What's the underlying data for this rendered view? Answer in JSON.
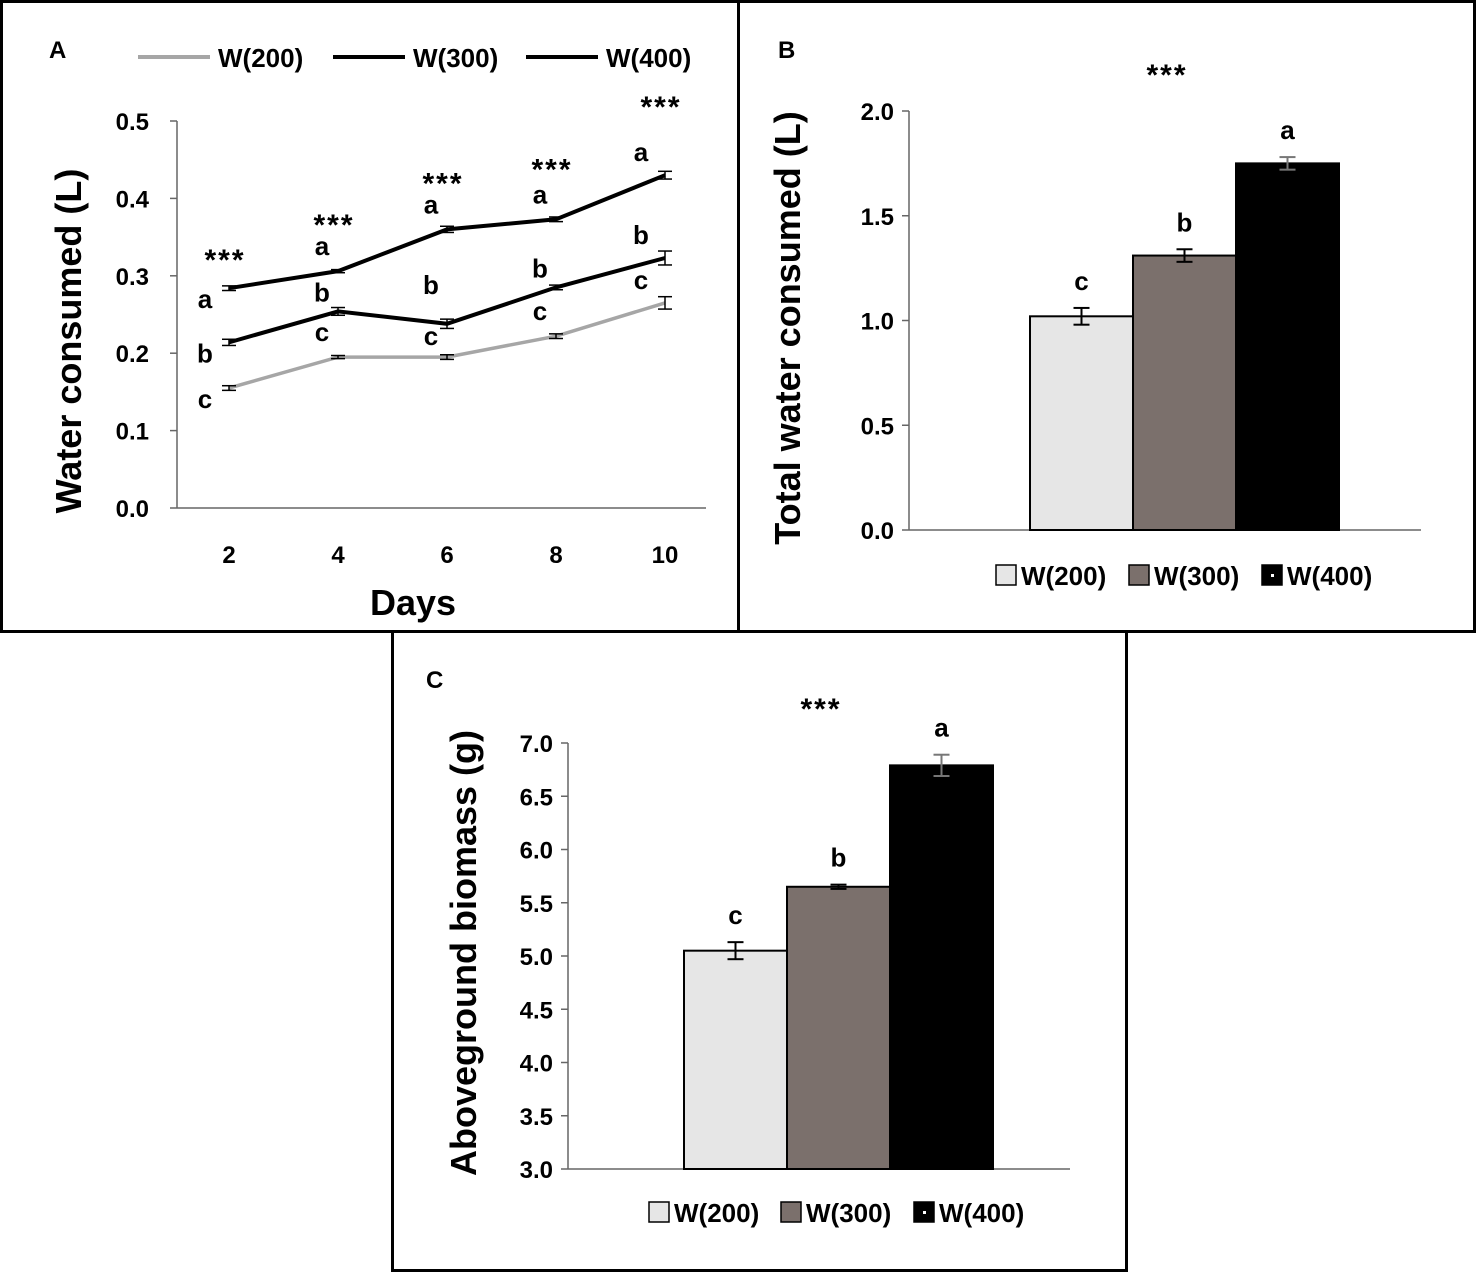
{
  "chart_data": [
    {
      "id": "A",
      "type": "line",
      "panel_label": "A",
      "xlabel": "Days",
      "ylabel": "Water consumed (L)",
      "ylim": [
        0,
        0.5
      ],
      "yticks": [
        "0.0",
        "0.1",
        "0.2",
        "0.3",
        "0.4",
        "0.5"
      ],
      "categories": [
        "2",
        "4",
        "6",
        "8",
        "10"
      ],
      "significance": [
        "***",
        "***",
        "***",
        "***",
        "***"
      ],
      "series": [
        {
          "name": "W(200)",
          "color": "#a6a6a6",
          "values": [
            0.155,
            0.195,
            0.195,
            0.222,
            0.265
          ],
          "errors": [
            0.003,
            0.002,
            0.003,
            0.003,
            0.008
          ],
          "letters": [
            "c",
            "c",
            "c",
            "c",
            "c"
          ]
        },
        {
          "name": "W(300)",
          "color": "#000000",
          "values": [
            0.214,
            0.254,
            0.238,
            0.285,
            0.323
          ],
          "errors": [
            0.004,
            0.005,
            0.006,
            0.003,
            0.009
          ],
          "letters": [
            "b",
            "b",
            "b",
            "b",
            "b"
          ]
        },
        {
          "name": "W(400)",
          "color": "#000000",
          "values": [
            0.284,
            0.306,
            0.36,
            0.373,
            0.43
          ],
          "errors": [
            0.003,
            0.002,
            0.004,
            0.003,
            0.005
          ],
          "letters": [
            "a",
            "a",
            "a",
            "a",
            "a"
          ]
        }
      ]
    },
    {
      "id": "B",
      "type": "bar",
      "panel_label": "B",
      "ylabel": "Total water consumed (L)",
      "ylim": [
        0,
        2.0
      ],
      "yticks": [
        "0.0",
        "0.5",
        "1.0",
        "1.5",
        "2.0"
      ],
      "significance": "***",
      "categories": [
        "W(200)",
        "W(300)",
        "W(400)"
      ],
      "values": [
        1.02,
        1.31,
        1.75
      ],
      "errors": [
        0.04,
        0.03,
        0.03
      ],
      "letters": [
        "c",
        "b",
        "a"
      ],
      "colors": [
        "#e6e6e6",
        "#7b706c",
        "#000000"
      ]
    },
    {
      "id": "C",
      "type": "bar",
      "panel_label": "C",
      "ylabel": "Aboveground biomass (g)",
      "ylim": [
        3.0,
        7.0
      ],
      "yticks": [
        "3.0",
        "3.5",
        "4.0",
        "4.5",
        "5.0",
        "5.5",
        "6.0",
        "6.5",
        "7.0"
      ],
      "significance": "***",
      "categories": [
        "W(200)",
        "W(300)",
        "W(400)"
      ],
      "values": [
        5.05,
        5.65,
        6.79
      ],
      "errors": [
        0.08,
        0.02,
        0.1
      ],
      "letters": [
        "c",
        "b",
        "a"
      ],
      "colors": [
        "#e6e6e6",
        "#7b706c",
        "#000000"
      ]
    }
  ]
}
